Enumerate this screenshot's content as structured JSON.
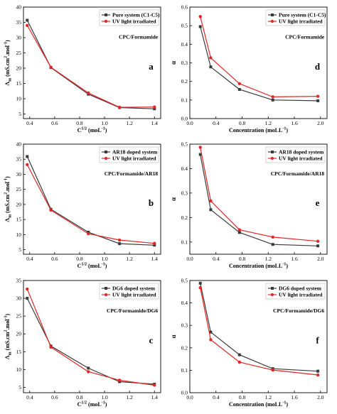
{
  "colors": {
    "series1": "#3a3a3a",
    "series2": "#e32626",
    "axis": "#000000"
  },
  "chart_data": [
    {
      "panel": "a",
      "type": "line",
      "system_label": "CPC/Formamide",
      "xlabel": "C",
      "xlabel_sup": "1/2",
      "xlabel_unit": " (moL",
      "xlabel_unit_sup": "-1",
      "xlabel_end": ")",
      "ylabel": "Λ",
      "ylabel_sub": "m",
      "ylabel_unit": " (mS.cm",
      "ylabel_unit_sup": "2",
      "ylabel_unit2": ".mol",
      "ylabel_unit2_sup": "-1",
      "ylabel_end": ")",
      "xlim": [
        0.35,
        1.45
      ],
      "ylim": [
        3.5,
        40
      ],
      "xticks": [
        0.4,
        0.6,
        0.8,
        1.0,
        1.2,
        1.4
      ],
      "yticks": [
        5,
        10,
        15,
        20,
        25,
        30,
        35,
        40
      ],
      "legend_position": "top-right",
      "series": [
        {
          "name": "Pure system (C1-C5)",
          "x": [
            0.38,
            0.57,
            0.87,
            1.12,
            1.4
          ],
          "y": [
            35.7,
            20.2,
            11.5,
            7.1,
            6.7
          ]
        },
        {
          "name": "UV light irradiated",
          "x": [
            0.38,
            0.57,
            0.87,
            1.12,
            1.4
          ],
          "y": [
            34.0,
            20.3,
            11.9,
            7.2,
            7.3
          ]
        }
      ]
    },
    {
      "panel": "d",
      "type": "line",
      "system_label": "CPC/Formamide",
      "xlabel": "Concentration (moLL",
      "xlabel_sup": "-1",
      "xlabel_end": ")",
      "ylabel": "α",
      "xlim": [
        0.0,
        2.1
      ],
      "ylim": [
        0.0,
        0.6
      ],
      "xticks": [
        0.0,
        0.4,
        0.8,
        1.2,
        1.6,
        2.0
      ],
      "yticks": [
        0.0,
        0.1,
        0.2,
        0.3,
        0.4,
        0.5,
        0.6
      ],
      "legend_position": "top-right",
      "series": [
        {
          "name": "Pure system (C1-C5)",
          "x": [
            0.16,
            0.32,
            0.76,
            1.27,
            1.96
          ],
          "y": [
            0.495,
            0.278,
            0.157,
            0.1,
            0.096
          ]
        },
        {
          "name": "UV light irradiated",
          "x": [
            0.16,
            0.32,
            0.76,
            1.27,
            1.96
          ],
          "y": [
            0.549,
            0.327,
            0.188,
            0.117,
            0.12
          ]
        }
      ]
    },
    {
      "panel": "b",
      "type": "line",
      "system_label": "CPC/Formamide/AR18",
      "xlabel": "C",
      "xlabel_sup": "1/2",
      "xlabel_unit": " (moL",
      "xlabel_unit_sup": "-1",
      "xlabel_end": ")",
      "ylabel": "Λ",
      "ylabel_sub": "m",
      "ylabel_unit": " (mS.cm",
      "ylabel_unit_sup": "2",
      "ylabel_unit2": ".mol",
      "ylabel_unit2_sup": "-1",
      "ylabel_end": ")",
      "xlim": [
        0.35,
        1.45
      ],
      "ylim": [
        3.5,
        40
      ],
      "xticks": [
        0.4,
        0.6,
        0.8,
        1.0,
        1.2,
        1.4
      ],
      "yticks": [
        5,
        10,
        15,
        20,
        25,
        30,
        35,
        40
      ],
      "legend_position": "top-right",
      "series": [
        {
          "name": "AR18 doped system",
          "x": [
            0.38,
            0.57,
            0.87,
            1.12,
            1.4
          ],
          "y": [
            35.9,
            18.4,
            10.8,
            7.0,
            6.5
          ]
        },
        {
          "name": "UV light irradiated",
          "x": [
            0.38,
            0.57,
            0.87,
            1.12,
            1.4
          ],
          "y": [
            33.2,
            18.1,
            10.3,
            8.2,
            7.1
          ]
        }
      ]
    },
    {
      "panel": "e",
      "type": "line",
      "system_label": "CPC/Formamide/AR18",
      "xlabel": "Concentration (moLL",
      "xlabel_sup": "-1",
      "xlabel_end": ")",
      "ylabel": "α",
      "xlim": [
        0.0,
        2.1
      ],
      "ylim": [
        0.05,
        0.5
      ],
      "xticks": [
        0.0,
        0.4,
        0.8,
        1.2,
        1.6,
        2.0
      ],
      "yticks": [
        0.1,
        0.2,
        0.3,
        0.4,
        0.5
      ],
      "legend_position": "top-right",
      "series": [
        {
          "name": "AR18 doped system",
          "x": [
            0.16,
            0.32,
            0.76,
            1.27,
            1.96
          ],
          "y": [
            0.458,
            0.232,
            0.139,
            0.09,
            0.084
          ]
        },
        {
          "name": "UV light irradiated",
          "x": [
            0.16,
            0.32,
            0.76,
            1.27,
            1.96
          ],
          "y": [
            0.487,
            0.268,
            0.15,
            0.12,
            0.103
          ]
        }
      ]
    },
    {
      "panel": "c",
      "type": "line",
      "system_label": "CPC/Formamide/DG6",
      "xlabel": "C",
      "xlabel_sup": "1/2",
      "xlabel_unit": " (moL",
      "xlabel_unit_sup": "-1",
      "xlabel_end": ")",
      "ylabel": "Λ",
      "ylabel_sub": "m",
      "ylabel_unit": " (mS.cm",
      "ylabel_unit_sup": "2",
      "ylabel_unit2": ".mol",
      "ylabel_unit2_sup": "-1",
      "ylabel_end": ")",
      "xlim": [
        0.35,
        1.45
      ],
      "ylim": [
        3.5,
        35
      ],
      "xticks": [
        0.4,
        0.6,
        0.8,
        1.0,
        1.2,
        1.4
      ],
      "yticks": [
        5,
        10,
        15,
        20,
        25,
        30,
        35
      ],
      "legend_position": "top-right",
      "series": [
        {
          "name": "DG6 doped system",
          "x": [
            0.38,
            0.57,
            0.87,
            1.12,
            1.4
          ],
          "y": [
            30.0,
            16.6,
            10.4,
            6.6,
            5.9
          ]
        },
        {
          "name": "UV light irradiated",
          "x": [
            0.38,
            0.57,
            0.87,
            1.12,
            1.4
          ],
          "y": [
            32.6,
            16.3,
            9.4,
            7.0,
            5.6
          ]
        }
      ]
    },
    {
      "panel": "f",
      "type": "line",
      "system_label": "CPC/Formamide/DG6",
      "xlabel": "Concentration (moLL",
      "xlabel_sup": "-1",
      "xlabel_end": ")",
      "ylabel": "α",
      "xlim": [
        0.0,
        2.1
      ],
      "ylim": [
        0.0,
        0.5
      ],
      "xticks": [
        0.0,
        0.4,
        0.8,
        1.2,
        1.6,
        2.0
      ],
      "yticks": [
        0.0,
        0.1,
        0.2,
        0.3,
        0.4,
        0.5
      ],
      "legend_position": "top-right",
      "series": [
        {
          "name": "DG6 doped system",
          "x": [
            0.16,
            0.32,
            0.76,
            1.27,
            1.96
          ],
          "y": [
            0.488,
            0.27,
            0.169,
            0.107,
            0.096
          ]
        },
        {
          "name": "UV light irradiated",
          "x": [
            0.16,
            0.32,
            0.76,
            1.27,
            1.96
          ],
          "y": [
            0.468,
            0.236,
            0.136,
            0.101,
            0.079
          ]
        }
      ]
    }
  ]
}
